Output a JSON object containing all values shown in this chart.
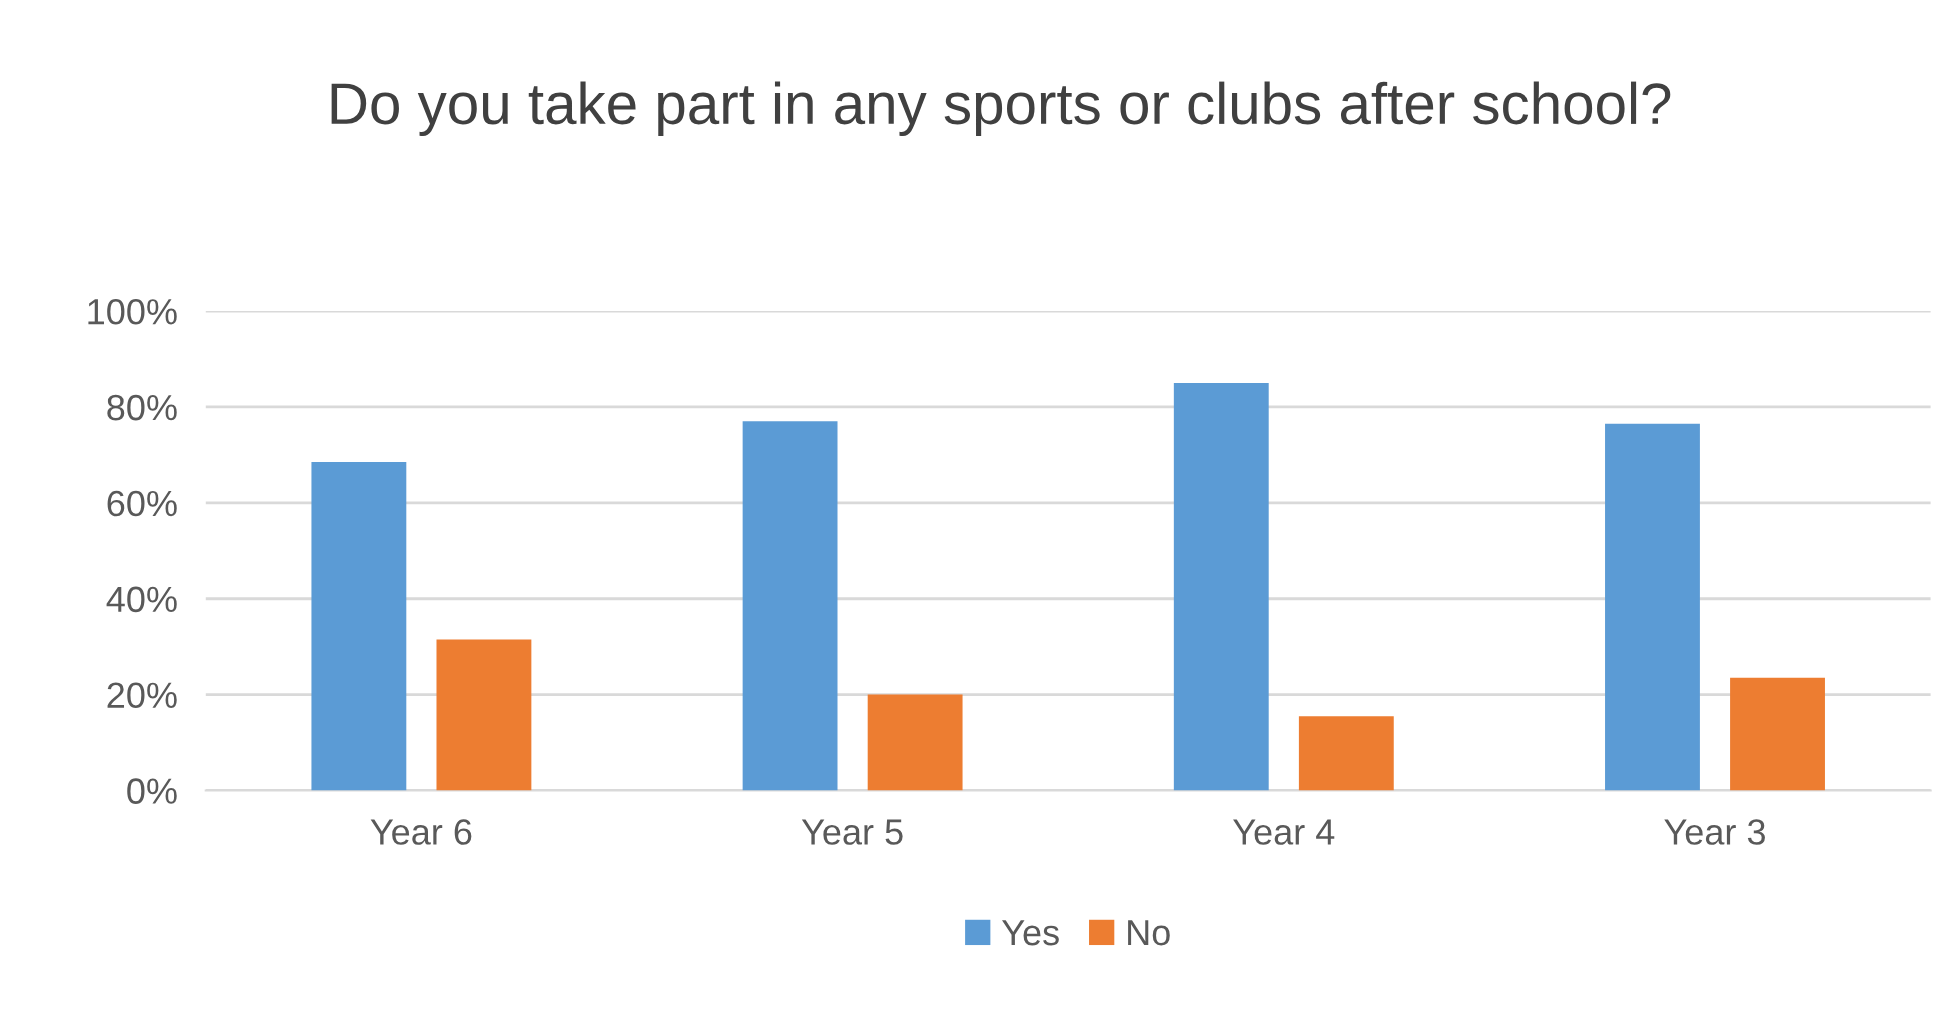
{
  "chart_data": {
    "type": "bar",
    "title": "Do you take part in any sports or clubs after school?",
    "categories": [
      "Year 6",
      "Year 5",
      "Year 4",
      "Year 3"
    ],
    "series": [
      {
        "name": "Yes",
        "color": "#5b9bd5",
        "values": [
          68.5,
          77,
          85,
          76.5
        ]
      },
      {
        "name": "No",
        "color": "#ed7d31",
        "values": [
          31.5,
          20,
          15.5,
          23.5
        ]
      }
    ],
    "ylim": [
      0,
      100
    ],
    "yticks": [
      {
        "value": 0,
        "label": "0%"
      },
      {
        "value": 20,
        "label": "20%"
      },
      {
        "value": 40,
        "label": "40%"
      },
      {
        "value": 60,
        "label": "60%"
      },
      {
        "value": 80,
        "label": "80%"
      },
      {
        "value": 100,
        "label": "100%"
      }
    ],
    "grid": "y",
    "legend": "bottom"
  }
}
